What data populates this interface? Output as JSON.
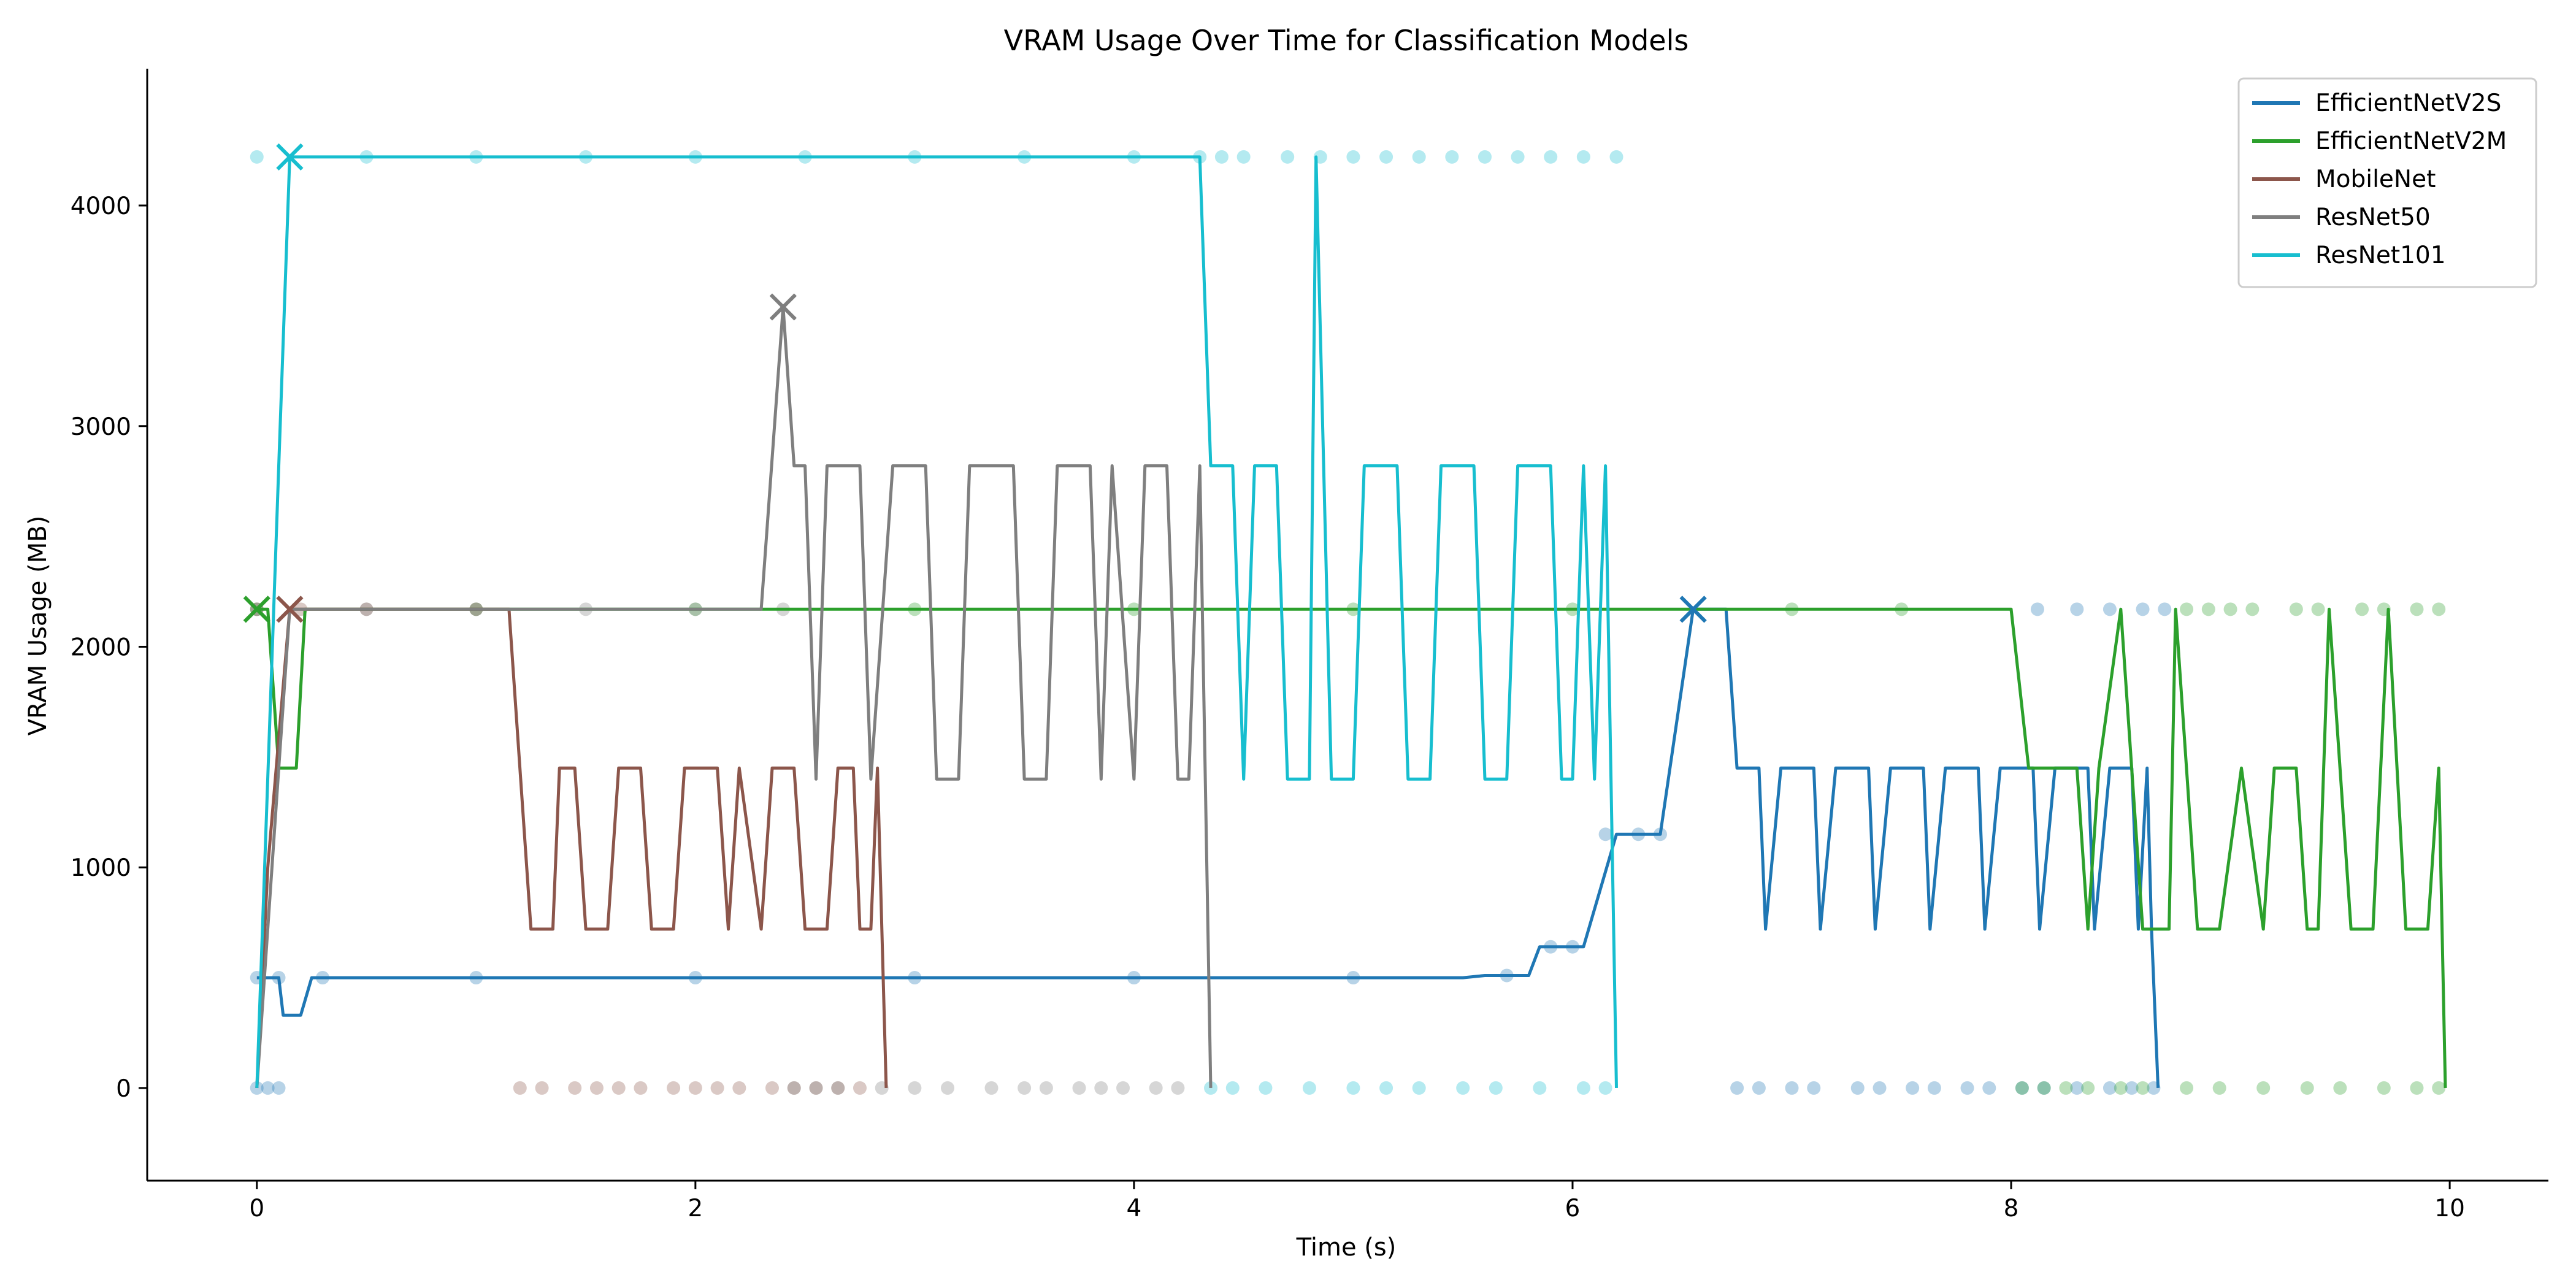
{
  "chart_data": {
    "type": "line",
    "title": "VRAM Usage Over Time for Classification Models",
    "xlabel": "Time (s)",
    "ylabel": "VRAM Usage (MB)",
    "xlim": [
      -0.5,
      10.45
    ],
    "ylim": [
      -420,
      4620
    ],
    "xticks": [
      0,
      2,
      4,
      6,
      8,
      10
    ],
    "yticks": [
      0,
      1000,
      2000,
      3000,
      4000
    ],
    "grid": false,
    "legend_position": "top-right",
    "series": [
      {
        "name": "EfficientNetV2S",
        "color": "#1f77b4",
        "line": [
          [
            0,
            500
          ],
          [
            0.1,
            500
          ],
          [
            0.12,
            330
          ],
          [
            0.2,
            330
          ],
          [
            0.25,
            500
          ],
          [
            0.3,
            500
          ],
          [
            5.5,
            500
          ],
          [
            5.6,
            510
          ],
          [
            5.8,
            510
          ],
          [
            5.85,
            640
          ],
          [
            6.05,
            640
          ],
          [
            6.2,
            1150
          ],
          [
            6.4,
            1150
          ],
          [
            6.55,
            2170
          ],
          [
            6.7,
            2170
          ],
          [
            6.75,
            1450
          ],
          [
            6.85,
            1450
          ],
          [
            6.88,
            720
          ],
          [
            6.95,
            1450
          ],
          [
            7.1,
            1450
          ],
          [
            7.13,
            720
          ],
          [
            7.2,
            1450
          ],
          [
            7.35,
            1450
          ],
          [
            7.38,
            720
          ],
          [
            7.45,
            1450
          ],
          [
            7.6,
            1450
          ],
          [
            7.63,
            720
          ],
          [
            7.7,
            1450
          ],
          [
            7.85,
            1450
          ],
          [
            7.88,
            720
          ],
          [
            7.95,
            1450
          ],
          [
            8.1,
            1450
          ],
          [
            8.13,
            720
          ],
          [
            8.2,
            1450
          ],
          [
            8.35,
            1450
          ],
          [
            8.38,
            720
          ],
          [
            8.45,
            1450
          ],
          [
            8.55,
            1450
          ],
          [
            8.58,
            720
          ],
          [
            8.62,
            1450
          ],
          [
            8.64,
            720
          ],
          [
            8.67,
            0
          ]
        ],
        "samples": [
          [
            0,
            500
          ],
          [
            0.1,
            500
          ],
          [
            0.3,
            500
          ],
          [
            1,
            500
          ],
          [
            2,
            500
          ],
          [
            3,
            500
          ],
          [
            4,
            500
          ],
          [
            5,
            500
          ],
          [
            5.7,
            510
          ],
          [
            5.9,
            640
          ],
          [
            6.0,
            640
          ],
          [
            6.15,
            1150
          ],
          [
            6.3,
            1150
          ],
          [
            6.4,
            1150
          ],
          [
            0,
            0
          ],
          [
            0.05,
            0
          ],
          [
            0.1,
            0
          ],
          [
            6.75,
            0
          ],
          [
            6.85,
            0
          ],
          [
            7.0,
            0
          ],
          [
            7.1,
            0
          ],
          [
            7.3,
            0
          ],
          [
            7.4,
            0
          ],
          [
            7.55,
            0
          ],
          [
            7.65,
            0
          ],
          [
            7.8,
            0
          ],
          [
            7.9,
            0
          ],
          [
            8.05,
            0
          ],
          [
            8.15,
            0
          ],
          [
            8.3,
            0
          ],
          [
            8.45,
            0
          ],
          [
            8.55,
            0
          ],
          [
            8.65,
            0
          ],
          [
            8.12,
            2170
          ],
          [
            8.3,
            2170
          ],
          [
            8.45,
            2170
          ],
          [
            8.6,
            2170
          ],
          [
            8.7,
            2170
          ]
        ],
        "peak": [
          6.55,
          2170
        ]
      },
      {
        "name": "EfficientNetV2M",
        "color": "#2ca02c",
        "line": [
          [
            0,
            2170
          ],
          [
            0.05,
            2170
          ],
          [
            0.1,
            1450
          ],
          [
            0.15,
            1450
          ],
          [
            0.18,
            1450
          ],
          [
            0.22,
            2170
          ],
          [
            1,
            2170
          ],
          [
            2,
            2170
          ],
          [
            3,
            2170
          ],
          [
            4,
            2170
          ],
          [
            5,
            2170
          ],
          [
            6,
            2170
          ],
          [
            7,
            2170
          ],
          [
            8.0,
            2170
          ],
          [
            8.08,
            1450
          ],
          [
            8.3,
            1450
          ],
          [
            8.35,
            720
          ],
          [
            8.4,
            1450
          ],
          [
            8.5,
            2170
          ],
          [
            8.6,
            720
          ],
          [
            8.72,
            720
          ],
          [
            8.75,
            2170
          ],
          [
            8.85,
            720
          ],
          [
            8.95,
            720
          ],
          [
            9.05,
            1450
          ],
          [
            9.15,
            720
          ],
          [
            9.2,
            1450
          ],
          [
            9.3,
            1450
          ],
          [
            9.35,
            720
          ],
          [
            9.4,
            720
          ],
          [
            9.45,
            2170
          ],
          [
            9.55,
            720
          ],
          [
            9.65,
            720
          ],
          [
            9.72,
            2170
          ],
          [
            9.8,
            720
          ],
          [
            9.9,
            720
          ],
          [
            9.95,
            1450
          ],
          [
            9.98,
            0
          ]
        ],
        "samples": [
          [
            0,
            2170
          ],
          [
            1,
            2170
          ],
          [
            2,
            2170
          ],
          [
            3,
            2170
          ],
          [
            4,
            2170
          ],
          [
            5,
            2170
          ],
          [
            6,
            2170
          ],
          [
            7,
            2170
          ],
          [
            7.5,
            2170
          ],
          [
            8.8,
            2170
          ],
          [
            8.9,
            2170
          ],
          [
            9.0,
            2170
          ],
          [
            9.1,
            2170
          ],
          [
            9.3,
            2170
          ],
          [
            9.4,
            2170
          ],
          [
            9.6,
            2170
          ],
          [
            9.7,
            2170
          ],
          [
            9.85,
            2170
          ],
          [
            9.95,
            2170
          ],
          [
            8.05,
            0
          ],
          [
            8.15,
            0
          ],
          [
            8.25,
            0
          ],
          [
            8.35,
            0
          ],
          [
            8.5,
            0
          ],
          [
            8.6,
            0
          ],
          [
            8.8,
            0
          ],
          [
            8.95,
            0
          ],
          [
            9.15,
            0
          ],
          [
            9.35,
            0
          ],
          [
            9.5,
            0
          ],
          [
            9.7,
            0
          ],
          [
            9.85,
            0
          ],
          [
            9.95,
            0
          ]
        ],
        "peak": [
          0,
          2170
        ]
      },
      {
        "name": "MobileNet",
        "color": "#8c564b",
        "line": [
          [
            0,
            0
          ],
          [
            0.05,
            1000
          ],
          [
            0.15,
            2170
          ],
          [
            1.15,
            2170
          ],
          [
            1.25,
            720
          ],
          [
            1.35,
            720
          ],
          [
            1.38,
            1450
          ],
          [
            1.45,
            1450
          ],
          [
            1.5,
            720
          ],
          [
            1.6,
            720
          ],
          [
            1.65,
            1450
          ],
          [
            1.75,
            1450
          ],
          [
            1.8,
            720
          ],
          [
            1.9,
            720
          ],
          [
            1.95,
            1450
          ],
          [
            2.1,
            1450
          ],
          [
            2.15,
            720
          ],
          [
            2.2,
            1450
          ],
          [
            2.3,
            720
          ],
          [
            2.35,
            1450
          ],
          [
            2.45,
            1450
          ],
          [
            2.5,
            720
          ],
          [
            2.6,
            720
          ],
          [
            2.65,
            1450
          ],
          [
            2.72,
            1450
          ],
          [
            2.75,
            720
          ],
          [
            2.8,
            720
          ],
          [
            2.83,
            1450
          ],
          [
            2.87,
            0
          ]
        ],
        "samples": [
          [
            0,
            2170
          ],
          [
            0.2,
            2170
          ],
          [
            0.5,
            2170
          ],
          [
            1,
            2170
          ],
          [
            1.2,
            0
          ],
          [
            1.3,
            0
          ],
          [
            1.45,
            0
          ],
          [
            1.55,
            0
          ],
          [
            1.65,
            0
          ],
          [
            1.75,
            0
          ],
          [
            1.9,
            0
          ],
          [
            2.0,
            0
          ],
          [
            2.1,
            0
          ],
          [
            2.2,
            0
          ],
          [
            2.35,
            0
          ],
          [
            2.45,
            0
          ],
          [
            2.55,
            0
          ],
          [
            2.65,
            0
          ],
          [
            2.75,
            0
          ]
        ],
        "peak": [
          0.15,
          2170
        ]
      },
      {
        "name": "ResNet50",
        "color": "#7f7f7f",
        "line": [
          [
            0,
            0
          ],
          [
            0.1,
            1450
          ],
          [
            0.15,
            2170
          ],
          [
            2.3,
            2170
          ],
          [
            2.4,
            3540
          ],
          [
            2.45,
            2820
          ],
          [
            2.5,
            2820
          ],
          [
            2.55,
            1400
          ],
          [
            2.6,
            2820
          ],
          [
            2.75,
            2820
          ],
          [
            2.8,
            1400
          ],
          [
            2.9,
            2820
          ],
          [
            3.05,
            2820
          ],
          [
            3.1,
            1400
          ],
          [
            3.2,
            1400
          ],
          [
            3.25,
            2820
          ],
          [
            3.45,
            2820
          ],
          [
            3.5,
            1400
          ],
          [
            3.6,
            1400
          ],
          [
            3.65,
            2820
          ],
          [
            3.8,
            2820
          ],
          [
            3.85,
            1400
          ],
          [
            3.9,
            2820
          ],
          [
            4.0,
            1400
          ],
          [
            4.05,
            2820
          ],
          [
            4.15,
            2820
          ],
          [
            4.2,
            1400
          ],
          [
            4.25,
            1400
          ],
          [
            4.3,
            2820
          ],
          [
            4.35,
            0
          ]
        ],
        "samples": [
          [
            0,
            2170
          ],
          [
            0.5,
            2170
          ],
          [
            1,
            2170
          ],
          [
            1.5,
            2170
          ],
          [
            2,
            2170
          ],
          [
            2.4,
            2170
          ],
          [
            2.45,
            0
          ],
          [
            2.55,
            0
          ],
          [
            2.65,
            0
          ],
          [
            2.85,
            0
          ],
          [
            3.0,
            0
          ],
          [
            3.15,
            0
          ],
          [
            3.35,
            0
          ],
          [
            3.5,
            0
          ],
          [
            3.6,
            0
          ],
          [
            3.75,
            0
          ],
          [
            3.85,
            0
          ],
          [
            3.95,
            0
          ],
          [
            4.1,
            0
          ],
          [
            4.2,
            0
          ]
        ],
        "peak": [
          2.4,
          3540
        ]
      },
      {
        "name": "ResNet101",
        "color": "#17becf",
        "line": [
          [
            0,
            0
          ],
          [
            0.1,
            2820
          ],
          [
            0.15,
            4220
          ],
          [
            4.3,
            4220
          ],
          [
            4.35,
            2820
          ],
          [
            4.45,
            2820
          ],
          [
            4.5,
            1400
          ],
          [
            4.55,
            2820
          ],
          [
            4.65,
            2820
          ],
          [
            4.7,
            1400
          ],
          [
            4.8,
            1400
          ],
          [
            4.83,
            4220
          ],
          [
            4.9,
            1400
          ],
          [
            5.0,
            1400
          ],
          [
            5.05,
            2820
          ],
          [
            5.2,
            2820
          ],
          [
            5.25,
            1400
          ],
          [
            5.35,
            1400
          ],
          [
            5.4,
            2820
          ],
          [
            5.55,
            2820
          ],
          [
            5.6,
            1400
          ],
          [
            5.7,
            1400
          ],
          [
            5.75,
            2820
          ],
          [
            5.9,
            2820
          ],
          [
            5.95,
            1400
          ],
          [
            6.0,
            1400
          ],
          [
            6.05,
            2820
          ],
          [
            6.1,
            1400
          ],
          [
            6.15,
            2820
          ],
          [
            6.2,
            0
          ]
        ],
        "samples": [
          [
            0,
            4220
          ],
          [
            0.5,
            4220
          ],
          [
            1,
            4220
          ],
          [
            1.5,
            4220
          ],
          [
            2,
            4220
          ],
          [
            2.5,
            4220
          ],
          [
            3,
            4220
          ],
          [
            3.5,
            4220
          ],
          [
            4,
            4220
          ],
          [
            4.3,
            4220
          ],
          [
            4.4,
            4220
          ],
          [
            4.5,
            4220
          ],
          [
            4.7,
            4220
          ],
          [
            4.85,
            4220
          ],
          [
            5.0,
            4220
          ],
          [
            5.15,
            4220
          ],
          [
            5.3,
            4220
          ],
          [
            5.45,
            4220
          ],
          [
            5.6,
            4220
          ],
          [
            5.75,
            4220
          ],
          [
            5.9,
            4220
          ],
          [
            6.05,
            4220
          ],
          [
            6.2,
            4220
          ],
          [
            4.35,
            0
          ],
          [
            4.45,
            0
          ],
          [
            4.6,
            0
          ],
          [
            4.8,
            0
          ],
          [
            5.0,
            0
          ],
          [
            5.15,
            0
          ],
          [
            5.3,
            0
          ],
          [
            5.5,
            0
          ],
          [
            5.65,
            0
          ],
          [
            5.85,
            0
          ],
          [
            6.05,
            0
          ],
          [
            6.15,
            0
          ]
        ],
        "peak": [
          0.15,
          4220
        ]
      }
    ]
  }
}
